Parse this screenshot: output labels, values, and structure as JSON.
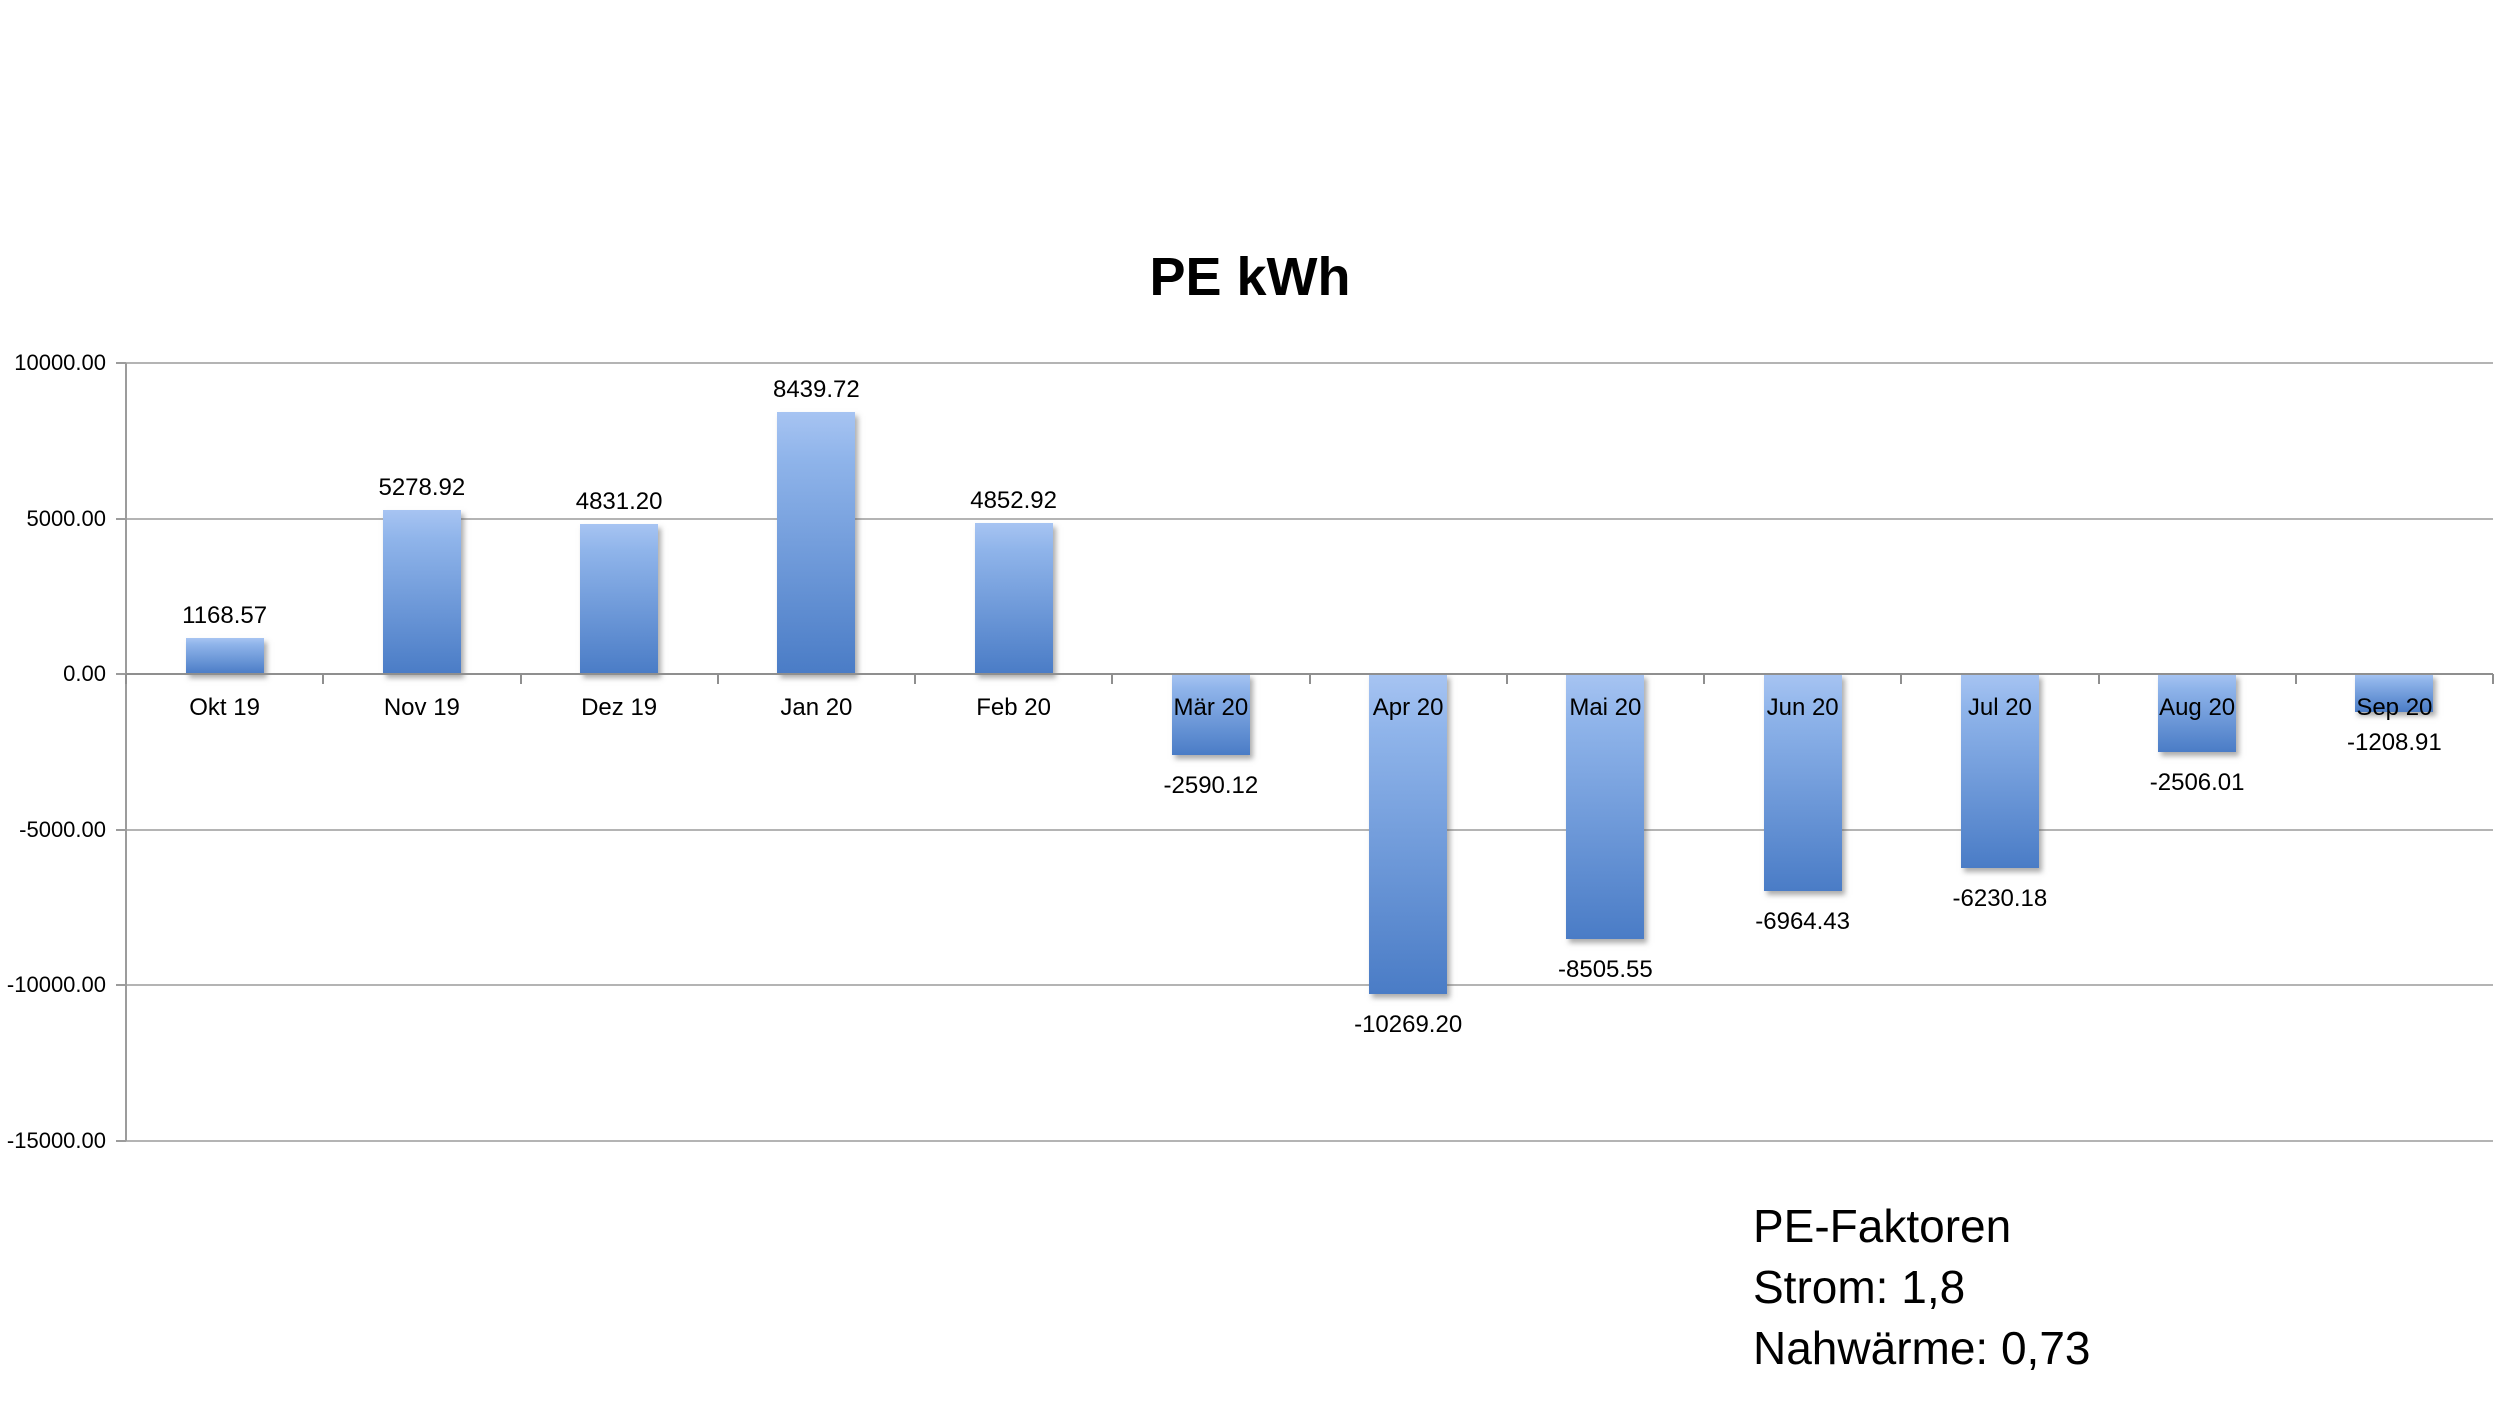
{
  "chart_data": {
    "type": "bar",
    "title": "PE kWh",
    "categories": [
      "Okt 19",
      "Nov 19",
      "Dez 19",
      "Jan 20",
      "Feb 20",
      "Mär 20",
      "Apr 20",
      "Mai 20",
      "Jun 20",
      "Jul 20",
      "Aug 20",
      "Sep 20"
    ],
    "values": [
      1168.57,
      5278.92,
      4831.2,
      8439.72,
      4852.92,
      -2590.12,
      -10269.2,
      -8505.55,
      -6964.43,
      -6230.18,
      -2506.01,
      -1208.91
    ],
    "value_labels": [
      "1168.57",
      "5278.92",
      "4831.20",
      "8439.72",
      "4852.92",
      "-2590.12",
      "-10269.20",
      "-8505.55",
      "-6964.43",
      "-6230.18",
      "-2506.01",
      "-1208.91"
    ],
    "y_ticks": [
      {
        "value": 10000,
        "label": "10000.00"
      },
      {
        "value": 5000,
        "label": "5000.00"
      },
      {
        "value": 0,
        "label": "0.00"
      },
      {
        "value": -5000,
        "label": "-5000.00"
      },
      {
        "value": -10000,
        "label": "-10000.00"
      },
      {
        "value": -15000,
        "label": "-15000.00"
      }
    ],
    "ylim": [
      -15000,
      10000
    ],
    "xlabel": "",
    "ylabel": "",
    "grid": true,
    "legend_position": "none",
    "bar_gradient_top": "#a7c4f2",
    "bar_gradient_bottom": "#4a7cc6"
  },
  "annotation": {
    "lines": [
      "PE-Faktoren",
      "Strom: 1,8",
      "Nahwärme: 0,73"
    ]
  }
}
